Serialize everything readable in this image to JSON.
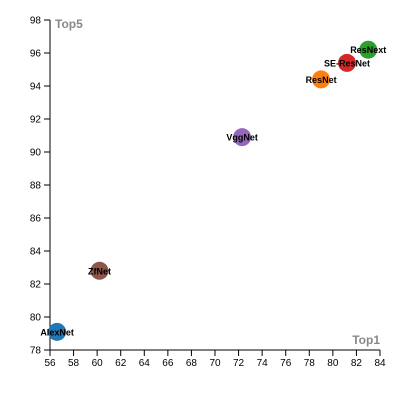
{
  "chart_data": {
    "type": "scatter",
    "title": "",
    "xlabel": "Top1",
    "ylabel": "Top5",
    "xlim": [
      56,
      84
    ],
    "ylim": [
      78,
      98
    ],
    "x_ticks": [
      56,
      58,
      60,
      62,
      64,
      66,
      68,
      70,
      72,
      74,
      76,
      78,
      80,
      82,
      84
    ],
    "y_ticks": [
      78,
      80,
      82,
      84,
      86,
      88,
      90,
      92,
      94,
      96,
      98
    ],
    "grid": false,
    "legend": "none",
    "points": [
      {
        "label": "AlexNet",
        "x": 56.6,
        "y": 79.1,
        "color": "#1f77b4"
      },
      {
        "label": "ZfNet",
        "x": 60.2,
        "y": 82.8,
        "color": "#8c564b"
      },
      {
        "label": "VggNet",
        "x": 72.3,
        "y": 90.9,
        "color": "#9467bd"
      },
      {
        "label": "ResNet",
        "x": 79.0,
        "y": 94.4,
        "color": "#ff7f0e"
      },
      {
        "label": "SE-ResNet",
        "x": 81.2,
        "y": 95.4,
        "color": "#d62728"
      },
      {
        "label": "ResNext",
        "x": 83.0,
        "y": 96.2,
        "color": "#2ca02c"
      }
    ]
  }
}
